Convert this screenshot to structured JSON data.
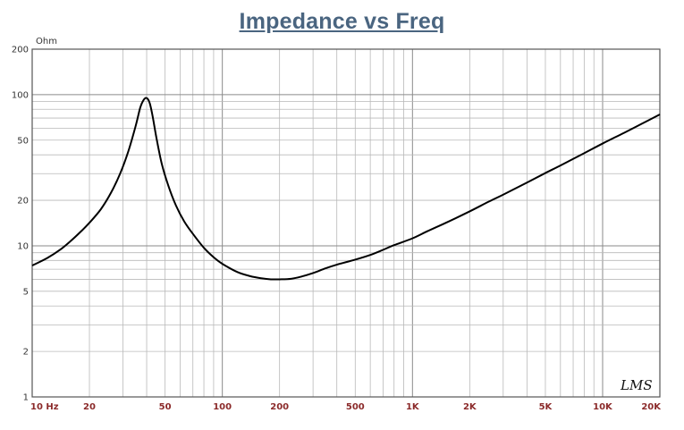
{
  "title": "Impedance vs Freq",
  "brand": "LMS",
  "chart_data": {
    "type": "line",
    "title": "Impedance vs Freq",
    "xlabel": "",
    "ylabel": "Ohm",
    "x_scale": "log",
    "y_scale": "log",
    "xlim": [
      10,
      20000
    ],
    "ylim": [
      1,
      200
    ],
    "grid": true,
    "x_tick_labels": [
      {
        "value": 10,
        "label": "10 Hz"
      },
      {
        "value": 20,
        "label": "20"
      },
      {
        "value": 50,
        "label": "50"
      },
      {
        "value": 100,
        "label": "100"
      },
      {
        "value": 200,
        "label": "200"
      },
      {
        "value": 500,
        "label": "500"
      },
      {
        "value": 1000,
        "label": "1K"
      },
      {
        "value": 2000,
        "label": "2K"
      },
      {
        "value": 5000,
        "label": "5K"
      },
      {
        "value": 10000,
        "label": "10K"
      },
      {
        "value": 20000,
        "label": "20K"
      }
    ],
    "y_tick_labels": [
      {
        "value": 1,
        "label": "1"
      },
      {
        "value": 2,
        "label": "2"
      },
      {
        "value": 5,
        "label": "5"
      },
      {
        "value": 10,
        "label": "10"
      },
      {
        "value": 20,
        "label": "20"
      },
      {
        "value": 50,
        "label": "50"
      },
      {
        "value": 100,
        "label": "100"
      },
      {
        "value": 200,
        "label": "200"
      }
    ],
    "series": [
      {
        "color": "#000000",
        "x": [
          10,
          12,
          14,
          16,
          18,
          20,
          23,
          26,
          29,
          32,
          35,
          37,
          38.5,
          40,
          41.5,
          43,
          45,
          48,
          52,
          57,
          63,
          70,
          80,
          90,
          100,
          120,
          140,
          160,
          180,
          200,
          230,
          260,
          300,
          350,
          400,
          500,
          600,
          700,
          800,
          1000,
          1200,
          1500,
          2000,
          2500,
          3000,
          4000,
          5000,
          6000,
          8000,
          10000,
          13000,
          16000,
          20000
        ],
        "y": [
          7.4,
          8.3,
          9.4,
          10.8,
          12.4,
          14.2,
          17.5,
          22.5,
          30,
          42,
          62,
          82,
          92,
          95,
          88,
          72,
          52,
          35,
          25,
          18.5,
          14.5,
          12,
          9.7,
          8.4,
          7.6,
          6.7,
          6.3,
          6.1,
          6.0,
          6.0,
          6.05,
          6.25,
          6.6,
          7.1,
          7.5,
          8.1,
          8.7,
          9.4,
          10.1,
          11.2,
          12.5,
          14.2,
          16.9,
          19.5,
          21.8,
          26.2,
          30.3,
          34,
          41,
          47.5,
          56,
          64,
          74
        ]
      }
    ]
  }
}
